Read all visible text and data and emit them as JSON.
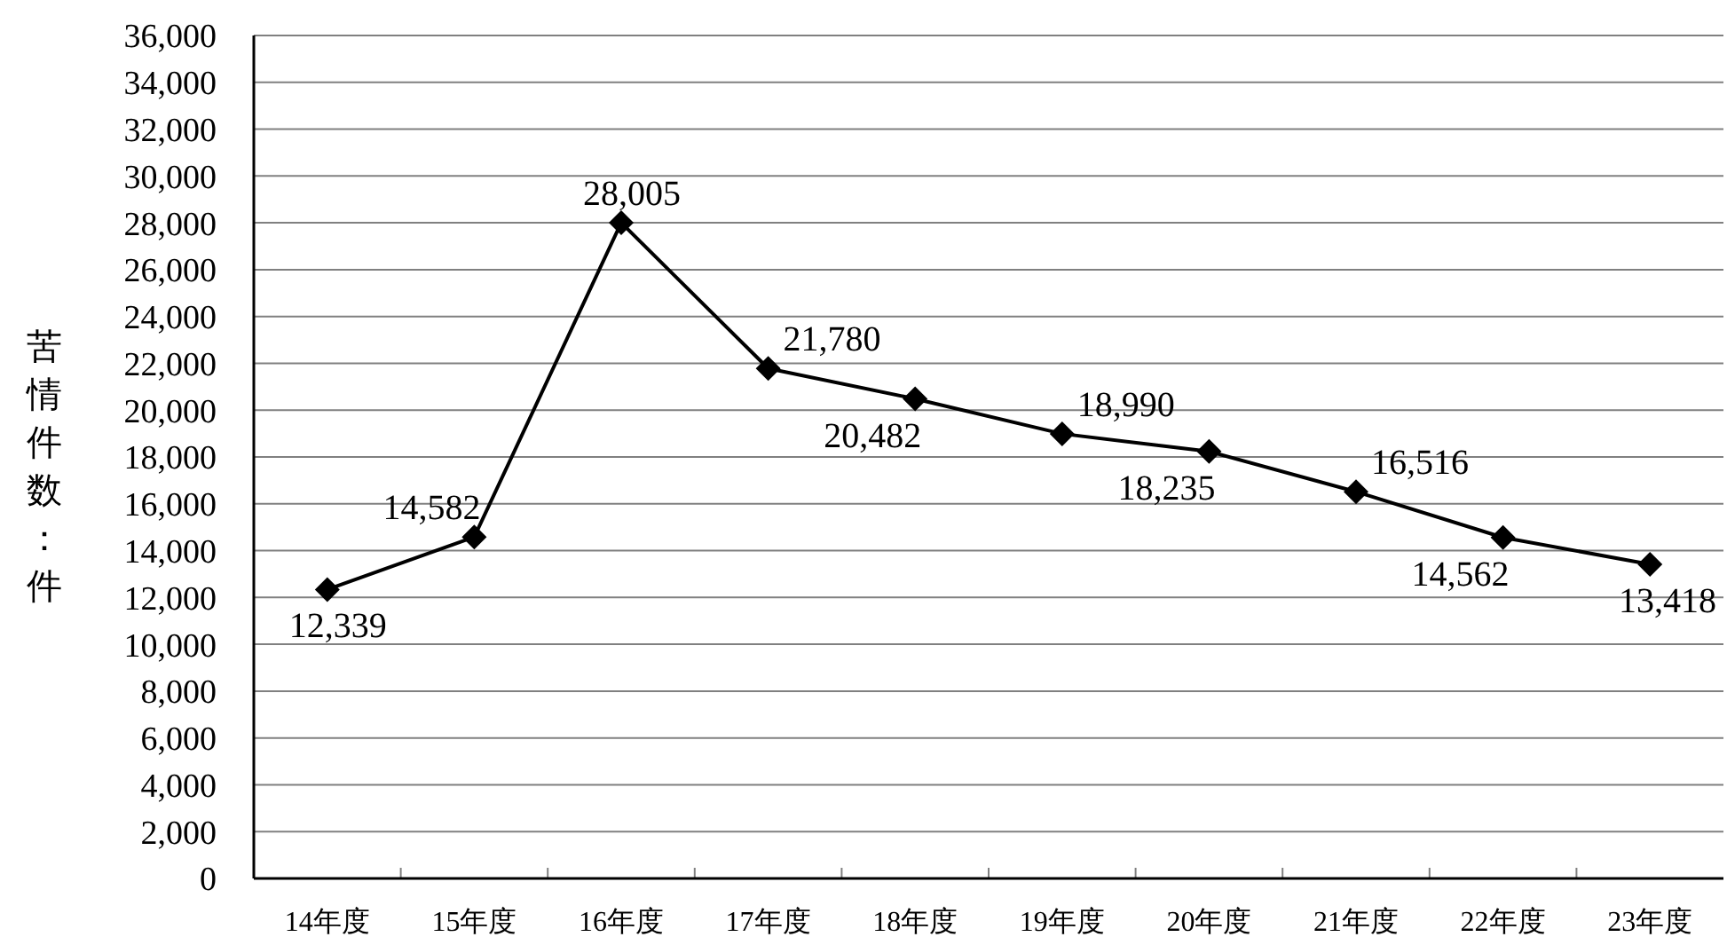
{
  "chart_data": {
    "type": "line",
    "ylabel": "苦情件数：件",
    "categories": [
      "14年度",
      "15年度",
      "16年度",
      "17年度",
      "18年度",
      "19年度",
      "20年度",
      "21年度",
      "22年度",
      "23年度"
    ],
    "values": [
      12339,
      14582,
      28005,
      21780,
      20482,
      18990,
      18235,
      16516,
      14562,
      13418
    ],
    "value_labels": [
      "12,339",
      "14,582",
      "28,005",
      "21,780",
      "20,482",
      "18,990",
      "18,235",
      "16,516",
      "14,562",
      "13,418"
    ],
    "color": "#000000",
    "marker": "diamond",
    "line_style": "solid",
    "grid": "y",
    "ylim": [
      0,
      36000
    ],
    "yticks": [
      0,
      {
        "value": 2000,
        "label": "2,000"
      },
      {
        "value": 4000,
        "label": "4,000"
      },
      {
        "value": 6000,
        "label": "6,000"
      },
      {
        "value": 8000,
        "label": "8,000"
      },
      {
        "value": 10000,
        "label": "10,000"
      },
      {
        "value": 12000,
        "label": "12,000"
      },
      {
        "value": 14000,
        "label": "14,000"
      },
      {
        "value": 16000,
        "label": "16,000"
      },
      {
        "value": 18000,
        "label": "18,000"
      },
      {
        "value": 20000,
        "label": "20,000"
      },
      {
        "value": 22000,
        "label": "22,000"
      },
      {
        "value": 24000,
        "label": "24,000"
      },
      {
        "value": 26000,
        "label": "26,000"
      },
      {
        "value": 28000,
        "label": "28,000"
      },
      {
        "value": 30000,
        "label": "30,000"
      },
      {
        "value": 32000,
        "label": "32,000"
      },
      {
        "value": 34000,
        "label": "34,000"
      },
      {
        "value": 36000,
        "label": "36,000"
      }
    ]
  }
}
